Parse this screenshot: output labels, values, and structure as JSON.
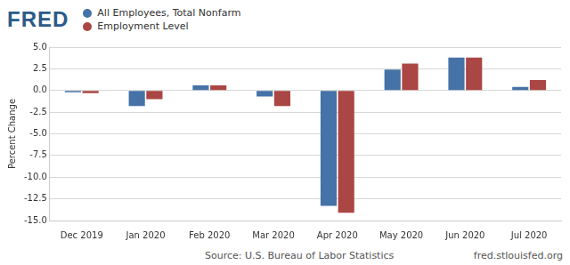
{
  "chart_data": {
    "type": "bar",
    "title": "FRED",
    "categories": [
      "Dec 2019",
      "Jan 2020",
      "Feb 2020",
      "Mar 2020",
      "Apr 2020",
      "May 2020",
      "Jun 2020",
      "Jul 2020"
    ],
    "series": [
      {
        "name": "All Employees, Total Nonfarm",
        "color": "#4572a7",
        "values": [
          -0.2,
          -1.8,
          0.6,
          -0.7,
          -13.3,
          2.4,
          3.8,
          0.4
        ]
      },
      {
        "name": "Employment Level",
        "color": "#aa4643",
        "values": [
          -0.3,
          -1.0,
          0.6,
          -1.8,
          -14.1,
          3.1,
          3.8,
          1.2
        ]
      }
    ],
    "y_label": "Percent Change",
    "ylim": [
      -15,
      5
    ],
    "yticks": [
      {
        "value": -15,
        "label": "-15.0"
      },
      -12.5,
      {
        "value": -10,
        "label": "-10.0"
      },
      -7.5,
      {
        "value": -5,
        "label": "-5.0"
      },
      -2.5,
      {
        "value": 0,
        "label": "0.0"
      },
      2.5,
      {
        "value": 5,
        "label": "5.0"
      }
    ],
    "grid": true,
    "legend": "top-left",
    "annotations": [
      "Source: U.S. Bureau of Labor Statistics",
      "fred.stlouisfed.org"
    ]
  }
}
